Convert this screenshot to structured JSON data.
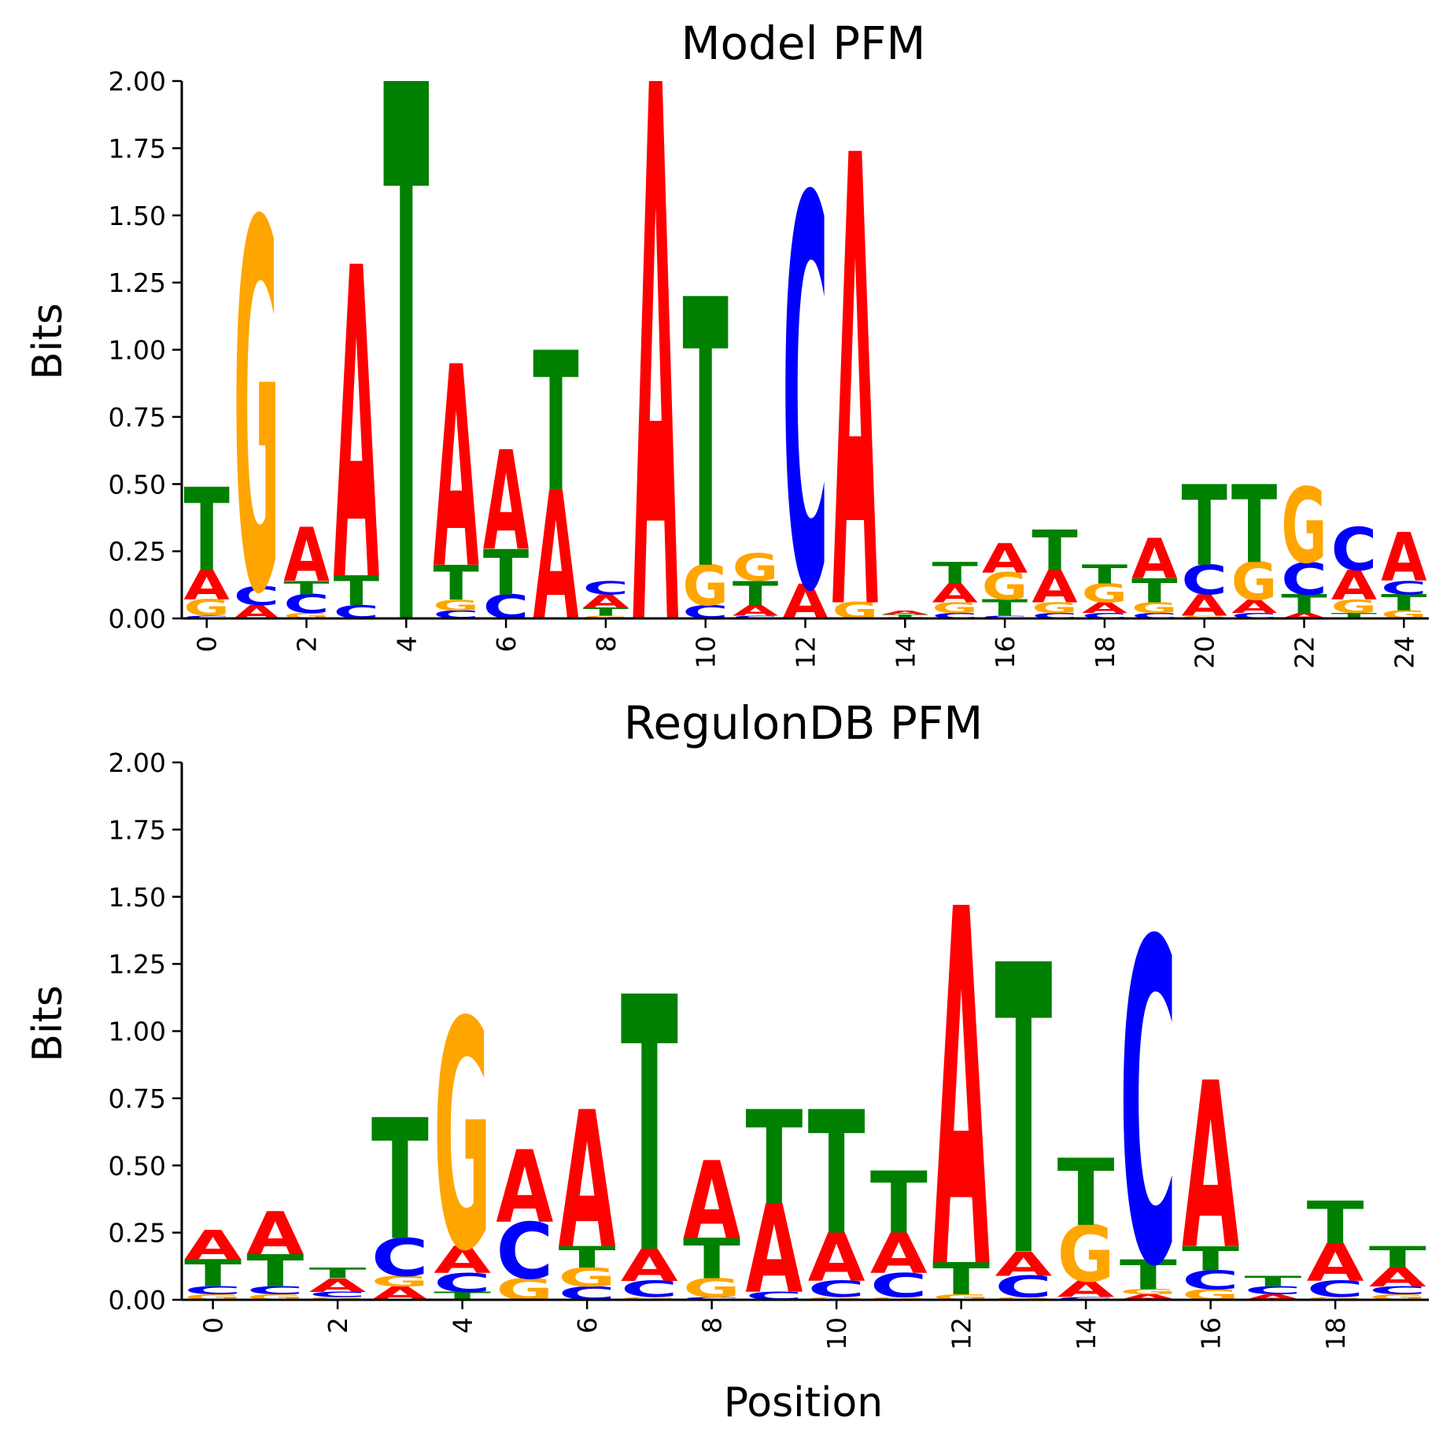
{
  "colors": {
    "A": "#ff0000",
    "C": "#0000ff",
    "G": "#ffa500",
    "T": "#008000"
  },
  "chart_data": [
    {
      "type": "sequence-logo",
      "title": "Model PFM",
      "xlabel": "",
      "ylabel": "Bits",
      "ylim": [
        0,
        2
      ],
      "yticks": [
        "0.00",
        "0.25",
        "0.50",
        "0.75",
        "1.00",
        "1.25",
        "1.50",
        "1.75",
        "2.00"
      ],
      "xticks": [
        "0",
        "2",
        "4",
        "6",
        "8",
        "10",
        "12",
        "14",
        "16",
        "18",
        "20",
        "22",
        "24"
      ],
      "positions": [
        {
          "pos": 0,
          "letters": [
            [
              "C",
              0.01
            ],
            [
              "G",
              0.06
            ],
            [
              "A",
              0.11
            ],
            [
              "T",
              0.31
            ]
          ]
        },
        {
          "pos": 1,
          "letters": [
            [
              "A",
              0.05
            ],
            [
              "C",
              0.07
            ],
            [
              "G",
              1.37
            ]
          ]
        },
        {
          "pos": 2,
          "letters": [
            [
              "G",
              0.02
            ],
            [
              "C",
              0.07
            ],
            [
              "T",
              0.05
            ],
            [
              "A",
              0.2
            ]
          ]
        },
        {
          "pos": 3,
          "letters": [
            [
              "C",
              0.05
            ],
            [
              "T",
              0.11
            ],
            [
              "A",
              1.16
            ]
          ]
        },
        {
          "pos": 4,
          "letters": [
            [
              "T",
              2.0
            ]
          ]
        },
        {
          "pos": 5,
          "letters": [
            [
              "C",
              0.03
            ],
            [
              "G",
              0.04
            ],
            [
              "T",
              0.13
            ],
            [
              "A",
              0.75
            ]
          ]
        },
        {
          "pos": 6,
          "letters": [
            [
              "C",
              0.09
            ],
            [
              "T",
              0.17
            ],
            [
              "A",
              0.37
            ]
          ]
        },
        {
          "pos": 7,
          "letters": [
            [
              "A",
              0.48
            ],
            [
              "T",
              0.52
            ]
          ]
        },
        {
          "pos": 8,
          "letters": [
            [
              "G",
              0.01
            ],
            [
              "T",
              0.03
            ],
            [
              "A",
              0.05
            ],
            [
              "C",
              0.05
            ]
          ]
        },
        {
          "pos": 9,
          "letters": [
            [
              "A",
              2.0
            ]
          ]
        },
        {
          "pos": 10,
          "letters": [
            [
              "C",
              0.05
            ],
            [
              "G",
              0.15
            ],
            [
              "T",
              1.0
            ]
          ]
        },
        {
          "pos": 11,
          "letters": [
            [
              "C",
              0.01
            ],
            [
              "A",
              0.04
            ],
            [
              "T",
              0.09
            ],
            [
              "G",
              0.1
            ]
          ]
        },
        {
          "pos": 12,
          "letters": [
            [
              "A",
              0.13
            ],
            [
              "C",
              1.45
            ]
          ]
        },
        {
          "pos": 13,
          "letters": [
            [
              "G",
              0.06
            ],
            [
              "A",
              1.68
            ]
          ]
        },
        {
          "pos": 14,
          "letters": [
            [
              "G",
              0.005
            ],
            [
              "T",
              0.01
            ],
            [
              "A",
              0.015
            ]
          ]
        },
        {
          "pos": 15,
          "letters": [
            [
              "C",
              0.02
            ],
            [
              "G",
              0.04
            ],
            [
              "A",
              0.07
            ],
            [
              "T",
              0.08
            ]
          ]
        },
        {
          "pos": 16,
          "letters": [
            [
              "C",
              0.01
            ],
            [
              "T",
              0.06
            ],
            [
              "G",
              0.1
            ],
            [
              "A",
              0.11
            ]
          ]
        },
        {
          "pos": 17,
          "letters": [
            [
              "C",
              0.02
            ],
            [
              "G",
              0.04
            ],
            [
              "A",
              0.12
            ],
            [
              "T",
              0.15
            ]
          ]
        },
        {
          "pos": 18,
          "letters": [
            [
              "C",
              0.02
            ],
            [
              "A",
              0.04
            ],
            [
              "G",
              0.07
            ],
            [
              "T",
              0.07
            ]
          ]
        },
        {
          "pos": 19,
          "letters": [
            [
              "C",
              0.02
            ],
            [
              "G",
              0.04
            ],
            [
              "T",
              0.09
            ],
            [
              "A",
              0.15
            ]
          ]
        },
        {
          "pos": 20,
          "letters": [
            [
              "G",
              0.01
            ],
            [
              "A",
              0.08
            ],
            [
              "C",
              0.11
            ],
            [
              "T",
              0.3
            ]
          ]
        },
        {
          "pos": 21,
          "letters": [
            [
              "C",
              0.02
            ],
            [
              "A",
              0.05
            ],
            [
              "G",
              0.14
            ],
            [
              "T",
              0.29
            ]
          ]
        },
        {
          "pos": 22,
          "letters": [
            [
              "A",
              0.02
            ],
            [
              "T",
              0.07
            ],
            [
              "C",
              0.12
            ],
            [
              "G",
              0.28
            ]
          ]
        },
        {
          "pos": 23,
          "letters": [
            [
              "T",
              0.02
            ],
            [
              "G",
              0.05
            ],
            [
              "A",
              0.11
            ],
            [
              "C",
              0.16
            ]
          ]
        },
        {
          "pos": 24,
          "letters": [
            [
              "G",
              0.03
            ],
            [
              "T",
              0.06
            ],
            [
              "C",
              0.05
            ],
            [
              "A",
              0.18
            ]
          ]
        }
      ]
    },
    {
      "type": "sequence-logo",
      "title": "RegulonDB PFM",
      "xlabel": "Position",
      "ylabel": "Bits",
      "ylim": [
        0,
        2
      ],
      "yticks": [
        "0.00",
        "0.25",
        "0.50",
        "0.75",
        "1.00",
        "1.25",
        "1.50",
        "1.75",
        "2.00"
      ],
      "xticks": [
        "0",
        "2",
        "4",
        "6",
        "8",
        "10",
        "12",
        "14",
        "16",
        "18"
      ],
      "positions": [
        {
          "pos": 0,
          "letters": [
            [
              "G",
              0.02
            ],
            [
              "C",
              0.03
            ],
            [
              "T",
              0.1
            ],
            [
              "A",
              0.11
            ]
          ]
        },
        {
          "pos": 1,
          "letters": [
            [
              "G",
              0.02
            ],
            [
              "C",
              0.03
            ],
            [
              "T",
              0.12
            ],
            [
              "A",
              0.16
            ]
          ]
        },
        {
          "pos": 2,
          "letters": [
            [
              "G",
              0.01
            ],
            [
              "C",
              0.02
            ],
            [
              "A",
              0.05
            ],
            [
              "T",
              0.04
            ]
          ]
        },
        {
          "pos": 3,
          "letters": [
            [
              "A",
              0.05
            ],
            [
              "G",
              0.04
            ],
            [
              "C",
              0.14
            ],
            [
              "T",
              0.45
            ]
          ]
        },
        {
          "pos": 4,
          "letters": [
            [
              "T",
              0.03
            ],
            [
              "C",
              0.07
            ],
            [
              "A",
              0.1
            ],
            [
              "G",
              0.85
            ]
          ]
        },
        {
          "pos": 5,
          "letters": [
            [
              "G",
              0.08
            ],
            [
              "C",
              0.21
            ],
            [
              "A",
              0.27
            ]
          ]
        },
        {
          "pos": 6,
          "letters": [
            [
              "C",
              0.05
            ],
            [
              "G",
              0.07
            ],
            [
              "T",
              0.08
            ],
            [
              "A",
              0.51
            ]
          ]
        },
        {
          "pos": 7,
          "letters": [
            [
              "G",
              0.01
            ],
            [
              "C",
              0.06
            ],
            [
              "A",
              0.12
            ],
            [
              "T",
              0.95
            ]
          ]
        },
        {
          "pos": 8,
          "letters": [
            [
              "C",
              0.01
            ],
            [
              "G",
              0.07
            ],
            [
              "T",
              0.15
            ],
            [
              "A",
              0.29
            ]
          ]
        },
        {
          "pos": 9,
          "letters": [
            [
              "C",
              0.03
            ],
            [
              "A",
              0.33
            ],
            [
              "T",
              0.35
            ]
          ]
        },
        {
          "pos": 10,
          "letters": [
            [
              "G",
              0.01
            ],
            [
              "C",
              0.06
            ],
            [
              "A",
              0.18
            ],
            [
              "T",
              0.46
            ]
          ]
        },
        {
          "pos": 11,
          "letters": [
            [
              "G",
              0.01
            ],
            [
              "C",
              0.09
            ],
            [
              "A",
              0.15
            ],
            [
              "T",
              0.23
            ]
          ]
        },
        {
          "pos": 12,
          "letters": [
            [
              "G",
              0.02
            ],
            [
              "T",
              0.12
            ],
            [
              "A",
              1.33
            ]
          ]
        },
        {
          "pos": 13,
          "letters": [
            [
              "G",
              0.01
            ],
            [
              "C",
              0.08
            ],
            [
              "A",
              0.09
            ],
            [
              "T",
              1.08
            ]
          ]
        },
        {
          "pos": 14,
          "letters": [
            [
              "C",
              0.01
            ],
            [
              "A",
              0.06
            ],
            [
              "G",
              0.21
            ],
            [
              "T",
              0.25
            ]
          ]
        },
        {
          "pos": 15,
          "letters": [
            [
              "A",
              0.02
            ],
            [
              "G",
              0.02
            ],
            [
              "T",
              0.11
            ],
            [
              "C",
              1.2
            ]
          ]
        },
        {
          "pos": 16,
          "letters": [
            [
              "G",
              0.04
            ],
            [
              "C",
              0.07
            ],
            [
              "T",
              0.09
            ],
            [
              "A",
              0.62
            ]
          ]
        },
        {
          "pos": 17,
          "letters": [
            [
              "A",
              0.02
            ],
            [
              "C",
              0.03
            ],
            [
              "T",
              0.04
            ]
          ]
        },
        {
          "pos": 18,
          "letters": [
            [
              "G",
              0.01
            ],
            [
              "C",
              0.06
            ],
            [
              "A",
              0.14
            ],
            [
              "T",
              0.16
            ]
          ]
        },
        {
          "pos": 19,
          "letters": [
            [
              "G",
              0.02
            ],
            [
              "C",
              0.03
            ],
            [
              "A",
              0.07
            ],
            [
              "T",
              0.08
            ]
          ]
        }
      ]
    }
  ]
}
